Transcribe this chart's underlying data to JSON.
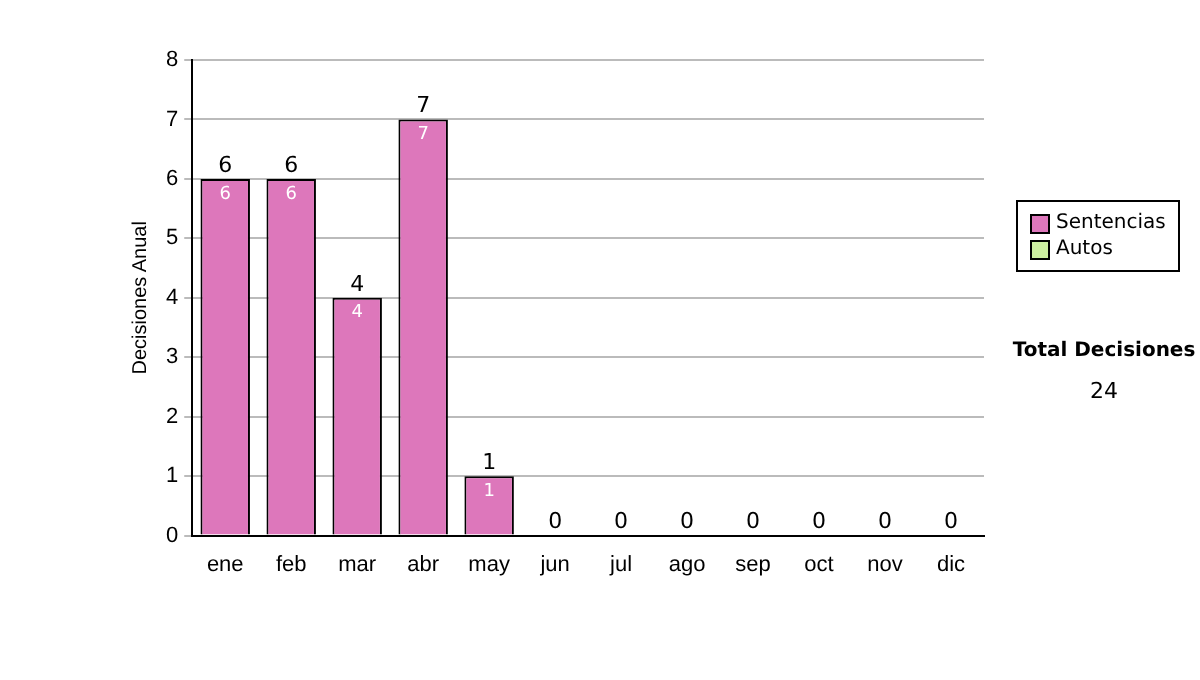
{
  "chart_data": {
    "type": "bar",
    "stacked": true,
    "ylabel": "Decisiones Anual",
    "categories": [
      "ene",
      "feb",
      "mar",
      "abr",
      "may",
      "jun",
      "jul",
      "ago",
      "sep",
      "oct",
      "nov",
      "dic"
    ],
    "series": [
      {
        "name": "Sentencias",
        "color": "#dd77bb",
        "values": [
          6,
          6,
          4,
          7,
          1,
          0,
          0,
          0,
          0,
          0,
          0,
          0
        ],
        "value_labels": [
          "6",
          "6",
          "4",
          "7",
          "1",
          null,
          null,
          null,
          null,
          null,
          null,
          null
        ]
      },
      {
        "name": "Autos",
        "color": "#cceea0",
        "values": [
          0,
          0,
          0,
          0,
          0,
          0,
          0,
          0,
          0,
          0,
          0,
          0
        ]
      }
    ],
    "totals": [
      "6",
      "6",
      "4",
      "7",
      "1",
      "0",
      "0",
      "0",
      "0",
      "0",
      "0",
      "0"
    ],
    "ylim": [
      0,
      8
    ],
    "yticks": [
      0,
      1,
      2,
      3,
      4,
      5,
      6,
      7,
      8
    ],
    "grid": "y",
    "legend": "right",
    "annotations": [
      "Total Decisiones",
      "24"
    ]
  }
}
